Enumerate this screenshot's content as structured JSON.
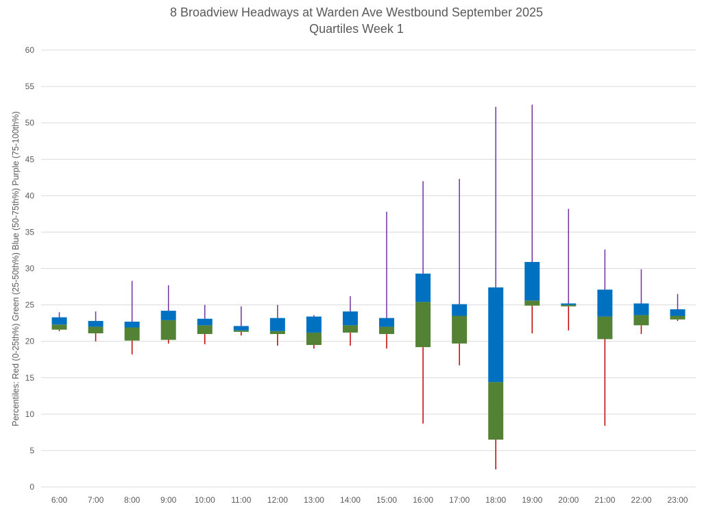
{
  "chart_data": {
    "type": "box",
    "title": "8 Broadview Headways at Warden Ave Westbound September 2025",
    "subtitle": "Quartiles Week 1",
    "ylabel": "Percentiles:  Red (0-25th%)  Green (25-50th%)  Blue (50-75th%)  Purple (75-100th%)",
    "xlabel": "",
    "ylim": [
      0,
      60
    ],
    "yticks": [
      0,
      5,
      10,
      15,
      20,
      25,
      30,
      35,
      40,
      45,
      50,
      55,
      60
    ],
    "grid": true,
    "colors": {
      "q1_whisker": "#c00000",
      "q2_box": "#548235",
      "q3_box": "#0070c0",
      "q4_whisker": "#7030a0",
      "grid": "#d9d9d9",
      "text": "#595959"
    },
    "categories": [
      "6:00",
      "7:00",
      "8:00",
      "9:00",
      "10:00",
      "11:00",
      "12:00",
      "13:00",
      "14:00",
      "15:00",
      "16:00",
      "17:00",
      "18:00",
      "19:00",
      "20:00",
      "21:00",
      "22:00",
      "23:00"
    ],
    "min": [
      21.4,
      20.0,
      18.2,
      19.7,
      19.6,
      20.8,
      19.4,
      19.0,
      19.4,
      19.0,
      8.7,
      16.7,
      2.4,
      21.1,
      21.5,
      8.4,
      21.0,
      22.8
    ],
    "q1": [
      21.6,
      21.1,
      20.1,
      20.2,
      21.0,
      21.3,
      21.0,
      19.5,
      21.2,
      21.0,
      19.2,
      19.7,
      6.5,
      24.9,
      24.8,
      20.3,
      22.2,
      23.0
    ],
    "median": [
      22.3,
      22.0,
      21.9,
      22.9,
      22.2,
      21.5,
      21.4,
      21.2,
      22.2,
      22.0,
      25.4,
      23.5,
      14.4,
      25.6,
      25.0,
      23.4,
      23.6,
      23.5
    ],
    "q3": [
      23.3,
      22.8,
      22.7,
      24.2,
      23.1,
      22.1,
      23.2,
      23.4,
      24.1,
      23.2,
      29.3,
      25.1,
      27.4,
      30.9,
      25.2,
      27.1,
      25.2,
      24.4
    ],
    "max": [
      24.0,
      24.1,
      28.3,
      27.7,
      25.0,
      24.8,
      25.0,
      23.6,
      26.2,
      37.8,
      42.0,
      42.3,
      52.2,
      52.5,
      38.2,
      32.6,
      29.9,
      26.5
    ]
  }
}
